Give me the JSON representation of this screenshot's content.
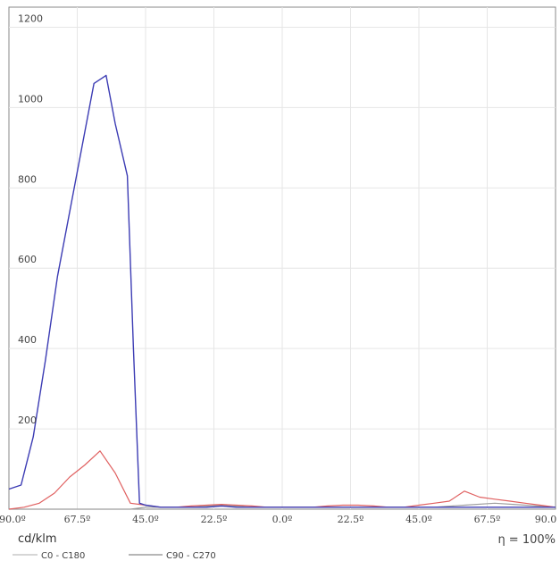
{
  "chart_data": {
    "type": "line",
    "unit_label": "cd/klm",
    "efficiency_label": "η = 100%",
    "ylim": [
      0,
      1250
    ],
    "yticks": [
      200,
      400,
      600,
      800,
      1000,
      1200
    ],
    "xlim": [
      -90,
      90
    ],
    "xticks": [
      -90,
      -67.5,
      -45,
      -22.5,
      0,
      22.5,
      45,
      67.5,
      90
    ],
    "xtick_labels": [
      "90.0º",
      "67.5º",
      "45.0º",
      "22.5º",
      "0.0º",
      "22.5º",
      "45.0º",
      "67.5º",
      "90.0"
    ],
    "grid": true,
    "legend_position": "bottom-left",
    "series": [
      {
        "name": "C0 - C180",
        "color": "#e06060",
        "x": [
          -90,
          -85,
          -80,
          -75,
          -70,
          -65,
          -60,
          -55,
          -50,
          -45,
          -40,
          -35,
          -30,
          -25,
          -20,
          -15,
          -10,
          -5,
          0,
          5,
          10,
          15,
          20,
          25,
          30,
          35,
          40,
          45,
          50,
          55,
          60,
          65,
          70,
          75,
          80,
          85,
          90
        ],
        "y": [
          0,
          5,
          15,
          40,
          80,
          110,
          145,
          90,
          15,
          10,
          5,
          5,
          8,
          10,
          12,
          10,
          8,
          5,
          5,
          5,
          5,
          8,
          10,
          10,
          8,
          5,
          5,
          10,
          15,
          20,
          45,
          30,
          25,
          20,
          15,
          10,
          5
        ]
      },
      {
        "name": "C90 - C270",
        "color": "#3c3cb4",
        "x": [
          -90,
          -86,
          -82,
          -78,
          -74,
          -70,
          -66,
          -62,
          -58,
          -55,
          -51,
          -49,
          -47,
          -45,
          -40,
          -35,
          -30,
          -25,
          -20,
          -15,
          -10,
          -5,
          0,
          5,
          10,
          15,
          20,
          25,
          30,
          35,
          40,
          45,
          50,
          55,
          60,
          65,
          70,
          75,
          80,
          85,
          90
        ],
        "y": [
          50,
          60,
          180,
          370,
          580,
          740,
          900,
          1060,
          1080,
          960,
          830,
          400,
          15,
          10,
          5,
          5,
          5,
          5,
          8,
          5,
          5,
          5,
          5,
          5,
          5,
          5,
          5,
          5,
          5,
          5,
          5,
          5,
          5,
          5,
          5,
          5,
          5,
          5,
          5,
          5,
          5
        ]
      },
      {
        "name": "",
        "color": "#9e9e9e",
        "x": [
          -90,
          -80,
          -70,
          -60,
          -50,
          -45,
          -40,
          -30,
          -20,
          -10,
          0,
          10,
          20,
          30,
          40,
          45,
          50,
          60,
          70,
          80,
          90
        ],
        "y": [
          0,
          0,
          0,
          0,
          0,
          5,
          5,
          5,
          10,
          5,
          5,
          5,
          5,
          5,
          5,
          5,
          5,
          10,
          15,
          10,
          5
        ]
      }
    ]
  }
}
